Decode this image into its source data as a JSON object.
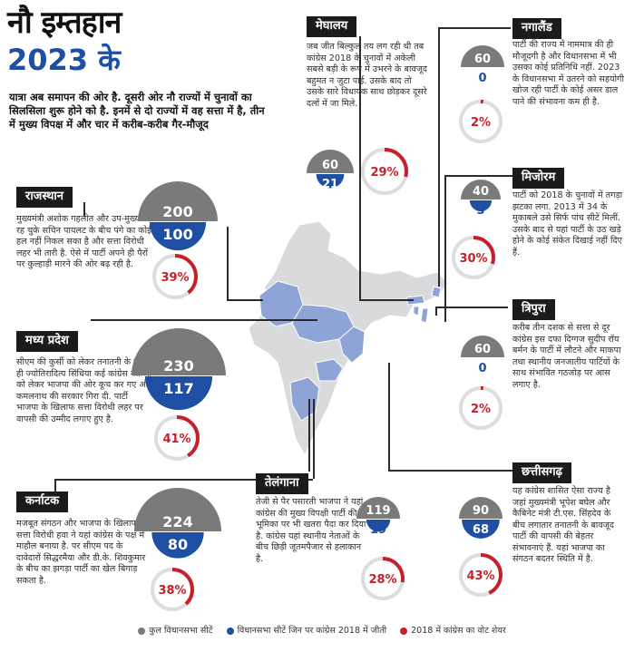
{
  "title": {
    "line1": "नौ इम्तहान",
    "line2": "2023 के"
  },
  "intro": "यात्रा अब समापन की ओर है. दूसरी ओर नौ राज्यों में चुनावों का सिलसिला शुरू होने को है. इनमें से दो राज्यों में वह सत्ता में है, तीन में मुख्य विपक्ष में और चार में करीब-करीब गैर-मौजूद",
  "colors": {
    "gray": "#7a7a7a",
    "blue": "#1f4fa3",
    "red": "#c8202a",
    "ringTrack": "#dddddd"
  },
  "states": [
    {
      "key": "rajasthan",
      "name": "राजस्थान",
      "total": 200,
      "won": 100,
      "share": "39%",
      "share_value": 39,
      "desc": "मुख्यमंत्री अशोक गहलोत और उप-मुख्यमंत्री रह चुके सचिन पायलट के बीच पंगे का कोई हल नहीं निकल सका है और सत्ता विरोधी लहर भी तारी है. ऐसे में पार्टी अपने ही पैरों पर कुल्हाड़ी मारने की ओर बढ़ रही है."
    },
    {
      "key": "mp",
      "name": "मध्य प्रदेश",
      "total": 230,
      "won": 117,
      "share": "41%",
      "share_value": 41,
      "desc": "सीएम की कुर्सी को लेकर तनातनी के चलते ही ज्योतिरादित्य सिंधिया कई कांग्रेस नेताओं को लेकर भाजपा की ओर कूच कर गए और कमलनाथ की सरकार गिरा दी. पार्टी भाजपा के खिलाफ सत्ता विरोधी लहर पर वापसी की उम्मीद लगाए हुए है."
    },
    {
      "key": "karnataka",
      "name": "कर्नाटक",
      "total": 224,
      "won": 80,
      "share": "38%",
      "share_value": 38,
      "desc": "मजबूत संगठन और भाजपा के खिलाफ सत्ता विरोधी हवा ने यहां कांग्रेस के पक्ष में माहौल बनाया है. पर सीएम पद के दावेदारों सिद्धरमैया और डी.के. शिवकुमार के बीच का झगड़ा पार्टी का खेल बिगाड़ सकता है."
    },
    {
      "key": "meghalaya",
      "name": "मेघालय",
      "total": 60,
      "won": 21,
      "share": "29%",
      "share_value": 29,
      "desc": "जब जीत बिल्कुल तय लग रही थी तब कांग्रेस 2018 के चुनावों में अकेली सबसे बड़ी के रूप में उभरने के बावजूद बहुमत न जुटा पाई. उसके बाद तो उसके सारे विधायक साथ छोड़कर दूसरे दलों में जा मिले."
    },
    {
      "key": "nagaland",
      "name": "नगालैंड",
      "total": 60,
      "won": 0,
      "share": "2%",
      "share_value": 2,
      "desc": "पार्टी की राज्य में नाममात्र की ही मौजूदगी है और विधानसभा में भी उसका कोई प्रतिनिधि नहीं. 2023 के विधानसभा में उतरने को सहयोगी खोज रही पार्टी के कोई असर डाल पाने की संभावना कम ही है."
    },
    {
      "key": "mizoram",
      "name": "मिजोरम",
      "total": 40,
      "won": 5,
      "share": "30%",
      "share_value": 30,
      "desc": "पार्टी को 2018 के चुनावों में तगड़ा झटका लगा. 2013 में 34 के मुकाबले उसे सिर्फ पांच सीटें मिलीं. उसके बाद से यहां पार्टी के उठ खड़े होने के कोई संकेत दिखाई नहीं दिए हैं."
    },
    {
      "key": "tripura",
      "name": "त्रिपुरा",
      "total": 60,
      "won": 0,
      "share": "2%",
      "share_value": 2,
      "desc": "करीब तीन दशक से सत्ता से दूर कांग्रेस इस दफा दिग्गज सुदीप रॉय बर्मन के पार्टी में लौटने और माकपा तथा स्थानीय जनजातीय पार्टियों के साथ संभावित गठजोड़ पर आस लगाए है."
    },
    {
      "key": "telangana",
      "name": "तेलंगाना",
      "total": 119,
      "won": 19,
      "share": "28%",
      "share_value": 28,
      "desc": "तेजी से पैर पसारती भाजपा ने यहां कांग्रेस की मुख्य विपक्षी पार्टी की भूमिका पर भी खतरा पैदा कर दिया है. कांग्रेस यहां स्थानीय नेताओं के बीच छिड़ी जूतमपैजार से हलाकान है."
    },
    {
      "key": "chhattisgarh",
      "name": "छत्तीसगढ़",
      "total": 90,
      "won": 68,
      "share": "43%",
      "share_value": 43,
      "desc": "यह कांग्रेस शासित ऐसा राज्य है जहां मुख्यमंत्री भूपेश बघेल और कैबिनेट मंत्री टी.एस. सिंहदेव के बीच लगातार तनातनी के बावजूद पार्टी की वापसी की बेहतर संभावनाएं हैं. यहां भाजपा का संगठन बदतर स्थिति में है."
    }
  ],
  "legend": [
    {
      "label": "कुल विधानसभा सीटें",
      "color": "#7a7a7a"
    },
    {
      "label": "विधानसभा सीटें जिन पर कांग्रेस 2018 में जीती",
      "color": "#1f4fa3"
    },
    {
      "label": "2018 में कांग्रेस का वोट शेयर",
      "color": "#c8202a"
    }
  ]
}
